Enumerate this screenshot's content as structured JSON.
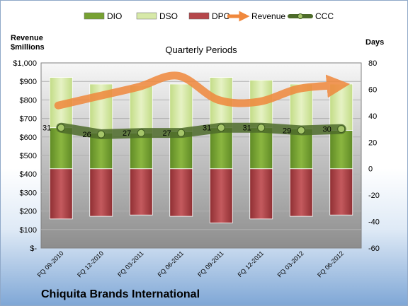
{
  "chart_data": {
    "type": "bar",
    "title": "Quarterly Periods",
    "company": "Chiquita Brands International",
    "left_axis_label": [
      "Revenue",
      "$millions"
    ],
    "right_axis_label": "Days",
    "categories": [
      "FQ 09-2010",
      "FQ 12-2010",
      "FQ 03-2011",
      "FQ 06-2011",
      "FQ 09-2011",
      "FQ 12-2011",
      "FQ 03-2012",
      "FQ 06-2012"
    ],
    "left_axis": {
      "min": 0,
      "max": 1000,
      "step": 100,
      "tick_labels": [
        "$-",
        "$100",
        "$200",
        "$300",
        "$400",
        "$500",
        "$600",
        "$700",
        "$800",
        "$900",
        "$1,000"
      ]
    },
    "right_axis": {
      "min": -60,
      "max": 80,
      "step": 20,
      "tick_labels": [
        "-60",
        "-40",
        "-20",
        "0",
        "20",
        "40",
        "60",
        "80"
      ]
    },
    "legend": [
      "DIO",
      "DSO",
      "DPO",
      "Revenue",
      "CCC"
    ],
    "legend_position": "top",
    "grid": true,
    "series": [
      {
        "name": "DIO",
        "axis": "right",
        "values": [
          31,
          27,
          27,
          28,
          31,
          31,
          30,
          29
        ],
        "color": "#77a132"
      },
      {
        "name": "DSO",
        "axis": "right",
        "values": [
          38,
          37,
          36,
          36,
          38,
          36,
          34,
          35
        ],
        "color": "#d7e9a8"
      },
      {
        "name": "DPO",
        "axis": "right",
        "values": [
          -38,
          -36,
          -35,
          -36,
          -41,
          -38,
          -36,
          -35
        ],
        "color": "#b5474b"
      },
      {
        "name": "Revenue",
        "axis": "left",
        "values": [
          770,
          820,
          870,
          930,
          800,
          790,
          860,
          880
        ],
        "color": "#f0883c"
      },
      {
        "name": "CCC",
        "axis": "right",
        "values": [
          31,
          26,
          27,
          27,
          31,
          31,
          29,
          30
        ],
        "color": "#5a7a32"
      }
    ],
    "data_labels": [
      "31",
      "26",
      "27",
      "27",
      "31",
      "31",
      "29",
      "30"
    ]
  }
}
